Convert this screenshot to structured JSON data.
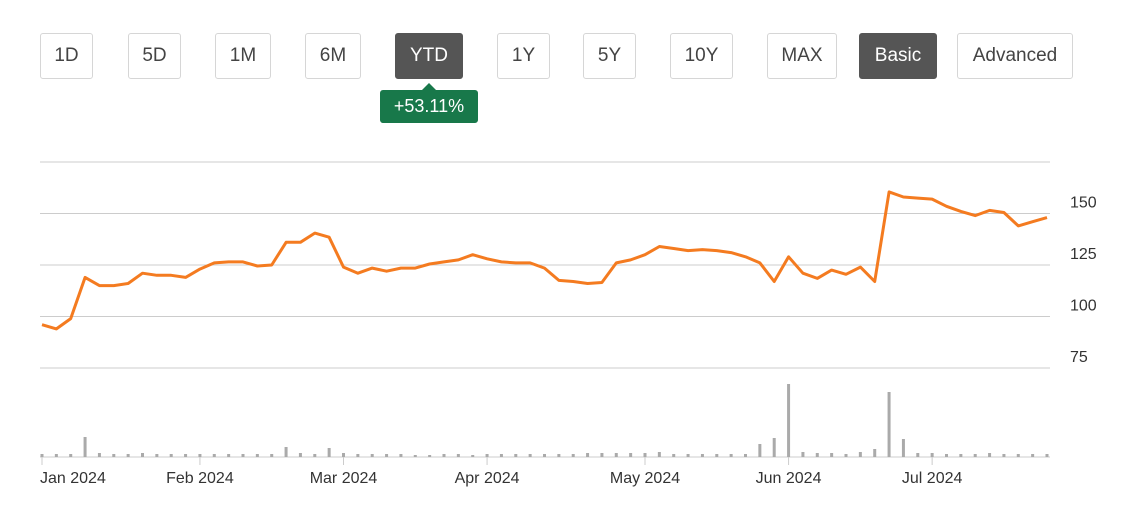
{
  "buttons": [
    {
      "label": "1D",
      "active": false
    },
    {
      "label": "5D",
      "active": false
    },
    {
      "label": "1M",
      "active": false
    },
    {
      "label": "6M",
      "active": false
    },
    {
      "label": "YTD",
      "active": true
    },
    {
      "label": "1Y",
      "active": false
    },
    {
      "label": "5Y",
      "active": false
    },
    {
      "label": "10Y",
      "active": false
    },
    {
      "label": "MAX",
      "active": false
    },
    {
      "label": "Basic",
      "active": true
    },
    {
      "label": "Advanced",
      "active": false
    }
  ],
  "badge": "+53.11%",
  "chart_data": [
    {
      "type": "line",
      "color": "#f47b20",
      "categories": [
        "Jan 2024",
        null,
        null,
        null,
        null,
        null,
        null,
        null,
        null,
        null,
        null,
        "Feb 2024",
        null,
        null,
        null,
        null,
        null,
        null,
        null,
        null,
        null,
        "Mar 2024",
        null,
        null,
        null,
        null,
        null,
        null,
        null,
        null,
        null,
        "Apr 2024",
        null,
        null,
        null,
        null,
        null,
        null,
        null,
        null,
        null,
        null,
        "May 2024",
        null,
        null,
        null,
        null,
        null,
        null,
        null,
        null,
        null,
        "Jun 2024",
        null,
        null,
        null,
        null,
        null,
        null,
        null,
        null,
        null,
        "Jul 2024",
        null,
        null,
        null,
        null,
        null,
        null,
        null,
        null
      ],
      "values": [
        96,
        94,
        99,
        119,
        115,
        115,
        116,
        121,
        120,
        120,
        119,
        123,
        126,
        126.5,
        126.5,
        124.5,
        125,
        136,
        136,
        140.5,
        138.5,
        124,
        121,
        123.5,
        122,
        123.5,
        123.5,
        125.5,
        126.5,
        127.5,
        130,
        128,
        126.5,
        126,
        126,
        123.5,
        117.5,
        117,
        116,
        116.5,
        126,
        127.5,
        130,
        134,
        133,
        132,
        132.5,
        132,
        131,
        129,
        126,
        117,
        129,
        121,
        118.5,
        122.5,
        120.5,
        124,
        117,
        160.5,
        158,
        157.5,
        157,
        153.5,
        151,
        149,
        151.5,
        150.5,
        144,
        146,
        148
      ],
      "ylim": [
        75,
        175
      ],
      "yticks": [
        75,
        100,
        125,
        150
      ],
      "grid": true
    },
    {
      "type": "bar",
      "color": "#aaaaaa",
      "values": [
        3,
        3,
        3,
        20,
        4,
        3,
        3,
        4,
        3,
        3,
        3,
        3,
        3,
        3,
        3,
        3,
        3,
        10,
        4,
        3,
        9,
        4,
        3,
        3,
        3,
        3,
        2,
        2,
        3,
        3,
        2,
        3,
        3,
        3,
        3,
        3,
        3,
        3,
        4,
        4,
        4,
        4,
        4,
        5,
        3,
        3,
        3,
        3,
        3,
        3,
        13,
        19,
        73,
        5,
        4,
        4,
        3,
        5,
        8,
        65,
        18,
        4,
        4,
        3,
        3,
        3,
        4,
        3,
        3,
        3,
        3
      ],
      "ylim": [
        0,
        80
      ]
    }
  ]
}
